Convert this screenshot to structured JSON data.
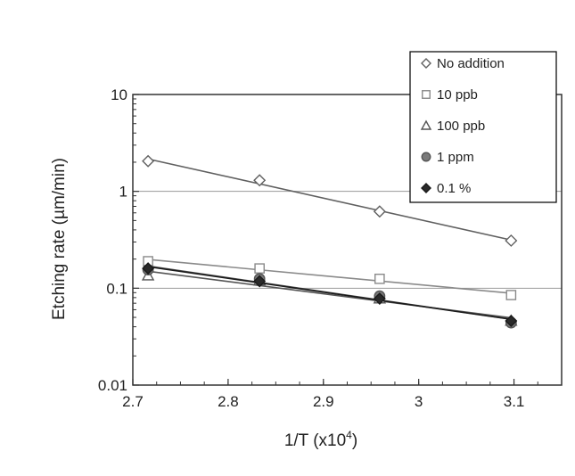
{
  "chart_data": {
    "type": "scatter",
    "title": "",
    "xlabel": "1/T  (x10",
    "xlabel_superscript": "4",
    "xlabel_suffix": ")",
    "ylabel": "Etching rate (µm/min)",
    "xlim": [
      2.7,
      3.15
    ],
    "ylim": [
      0.01,
      10
    ],
    "yscale": "log",
    "x_ticks": [
      2.7,
      2.8,
      2.9,
      3.0,
      3.1
    ],
    "x_tick_labels": [
      "2.7",
      "2.8",
      "2.9",
      "3",
      "3.1"
    ],
    "y_ticks": [
      0.01,
      0.1,
      1,
      10
    ],
    "y_tick_labels": [
      "0.01",
      "0.1",
      "1",
      "10"
    ],
    "gridlines_y": [
      0.1,
      1
    ],
    "legend_position": "top-right",
    "series": [
      {
        "name": "No addition",
        "marker": "diamond-open",
        "color": "#606060",
        "fill": "#ffffff",
        "x": [
          2.716,
          2.833,
          2.959,
          3.097
        ],
        "y": [
          2.05,
          1.3,
          0.62,
          0.31
        ]
      },
      {
        "name": "10 ppb",
        "marker": "square-open",
        "color": "#8a8a8a",
        "fill": "#ffffff",
        "x": [
          2.716,
          2.833,
          2.959,
          3.097
        ],
        "y": [
          0.19,
          0.16,
          0.125,
          0.085
        ]
      },
      {
        "name": "100 ppb",
        "marker": "triangle-open",
        "color": "#555555",
        "fill": "#ffffff",
        "x": [
          2.716,
          2.833,
          2.959,
          3.097
        ],
        "y": [
          0.135,
          0.12,
          0.078,
          0.046
        ]
      },
      {
        "name": "1 ppm",
        "marker": "circle-filled",
        "color": "#555555",
        "fill": "#7a7a7a",
        "x": [
          2.716,
          2.833,
          2.959,
          3.097
        ],
        "y": [
          0.155,
          0.125,
          0.083,
          0.044
        ]
      },
      {
        "name": "0.1 %",
        "marker": "diamond-filled",
        "color": "#1a1a1a",
        "fill": "#2a2a2a",
        "x": [
          2.716,
          2.833,
          2.959,
          3.097
        ],
        "y": [
          0.16,
          0.118,
          0.078,
          0.046
        ]
      }
    ]
  }
}
